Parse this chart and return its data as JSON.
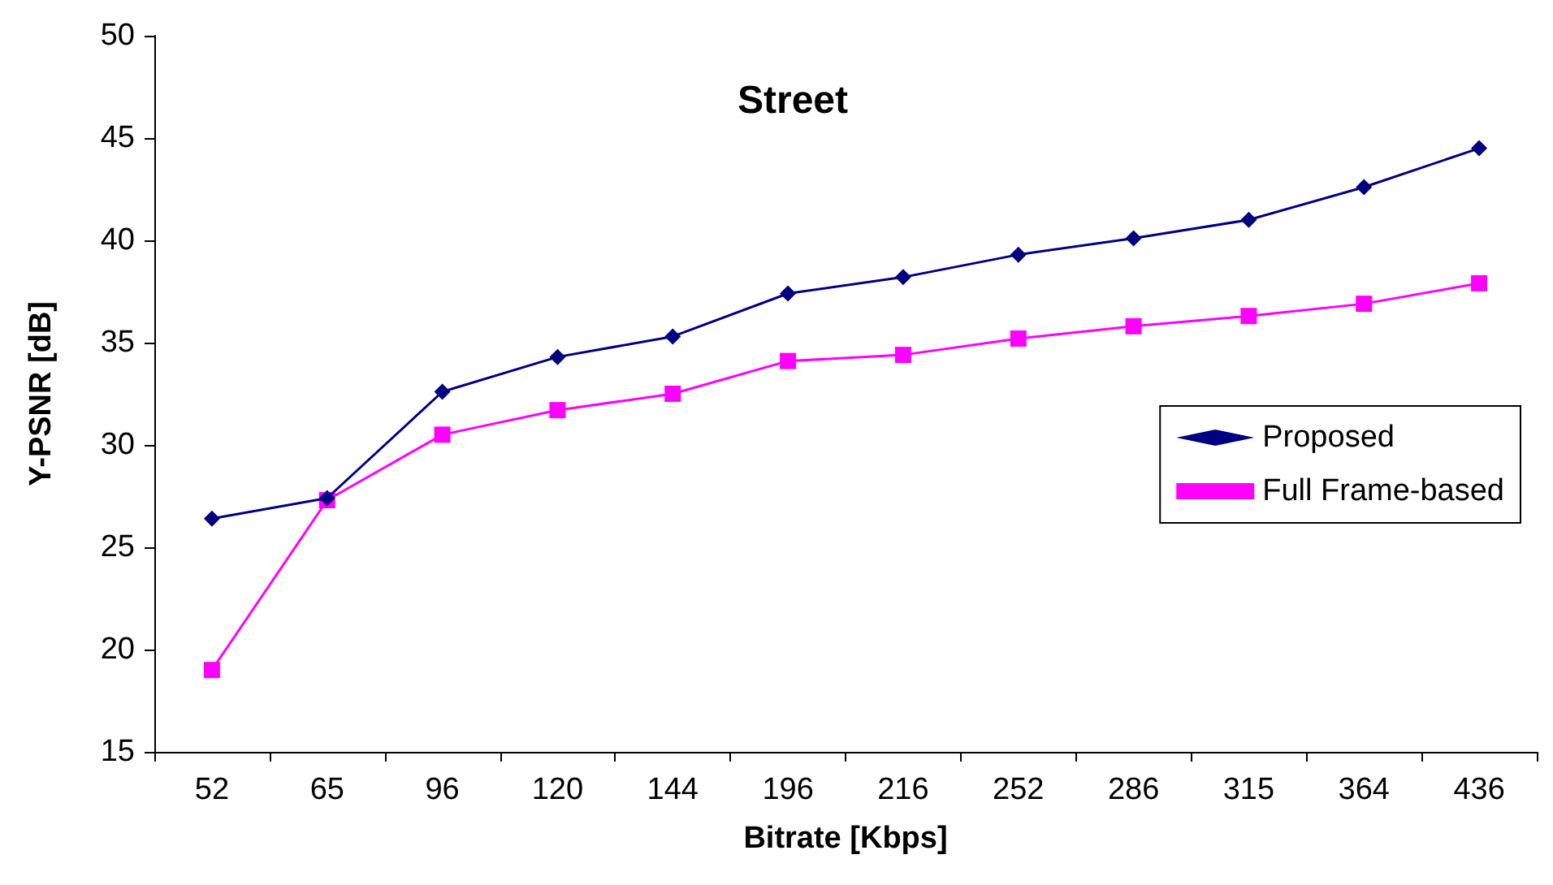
{
  "chart_data": {
    "type": "line",
    "title": "Street",
    "xlabel": "Bitrate [Kbps]",
    "ylabel": "Y-PSNR [dB]",
    "categories": [
      "52",
      "65",
      "96",
      "120",
      "144",
      "196",
      "216",
      "252",
      "286",
      "315",
      "364",
      "436"
    ],
    "series": [
      {
        "name": "Proposed",
        "color": "#000080",
        "marker": "diamond",
        "values": [
          26.4,
          27.4,
          32.6,
          34.3,
          35.3,
          37.4,
          38.2,
          39.3,
          40.1,
          41.0,
          42.6,
          44.5
        ]
      },
      {
        "name": "Full Frame-based",
        "color": "#ff00ff",
        "marker": "square",
        "values": [
          19.0,
          27.3,
          30.5,
          31.7,
          32.5,
          34.1,
          34.4,
          35.2,
          35.8,
          36.3,
          36.9,
          37.9
        ]
      }
    ],
    "ylim": [
      15,
      50
    ],
    "yticks": [
      15,
      20,
      25,
      30,
      35,
      40,
      45,
      50
    ],
    "grid": false,
    "legend": "right",
    "line_style": "solid"
  }
}
